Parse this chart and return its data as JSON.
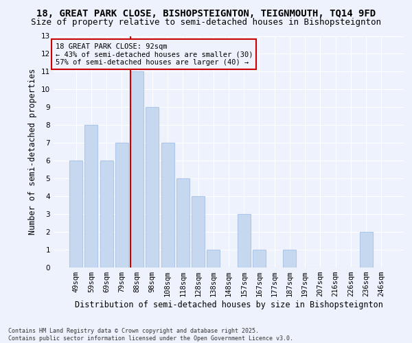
{
  "title1": "18, GREAT PARK CLOSE, BISHOPSTEIGNTON, TEIGNMOUTH, TQ14 9FD",
  "title2": "Size of property relative to semi-detached houses in Bishopsteignton",
  "xlabel": "Distribution of semi-detached houses by size in Bishopsteignton",
  "ylabel": "Number of semi-detached properties",
  "footnote1": "Contains HM Land Registry data © Crown copyright and database right 2025.",
  "footnote2": "Contains public sector information licensed under the Open Government Licence v3.0.",
  "categories": [
    "49sqm",
    "59sqm",
    "69sqm",
    "79sqm",
    "88sqm",
    "98sqm",
    "108sqm",
    "118sqm",
    "128sqm",
    "138sqm",
    "148sqm",
    "157sqm",
    "167sqm",
    "177sqm",
    "187sqm",
    "197sqm",
    "207sqm",
    "216sqm",
    "226sqm",
    "236sqm",
    "246sqm"
  ],
  "values": [
    6,
    8,
    6,
    7,
    11,
    9,
    7,
    5,
    4,
    1,
    0,
    3,
    1,
    0,
    1,
    0,
    0,
    0,
    0,
    2,
    0
  ],
  "bar_color": "#c5d8f0",
  "bar_edge_color": "#aec6e8",
  "property_line_index": 4,
  "property_line_color": "#cc0000",
  "annotation_title": "18 GREAT PARK CLOSE: 92sqm",
  "annotation_line1": "← 43% of semi-detached houses are smaller (30)",
  "annotation_line2": "57% of semi-detached houses are larger (40) →",
  "annotation_box_color": "#cc0000",
  "ylim": [
    0,
    13
  ],
  "yticks": [
    0,
    1,
    2,
    3,
    4,
    5,
    6,
    7,
    8,
    9,
    10,
    11,
    12,
    13
  ],
  "background_color": "#eef2fc",
  "grid_color": "#ffffff",
  "title1_fontsize": 10,
  "title2_fontsize": 9,
  "xlabel_fontsize": 8.5,
  "ylabel_fontsize": 8.5,
  "tick_fontsize": 7.5,
  "annotation_fontsize": 7.5,
  "footnote_fontsize": 6
}
